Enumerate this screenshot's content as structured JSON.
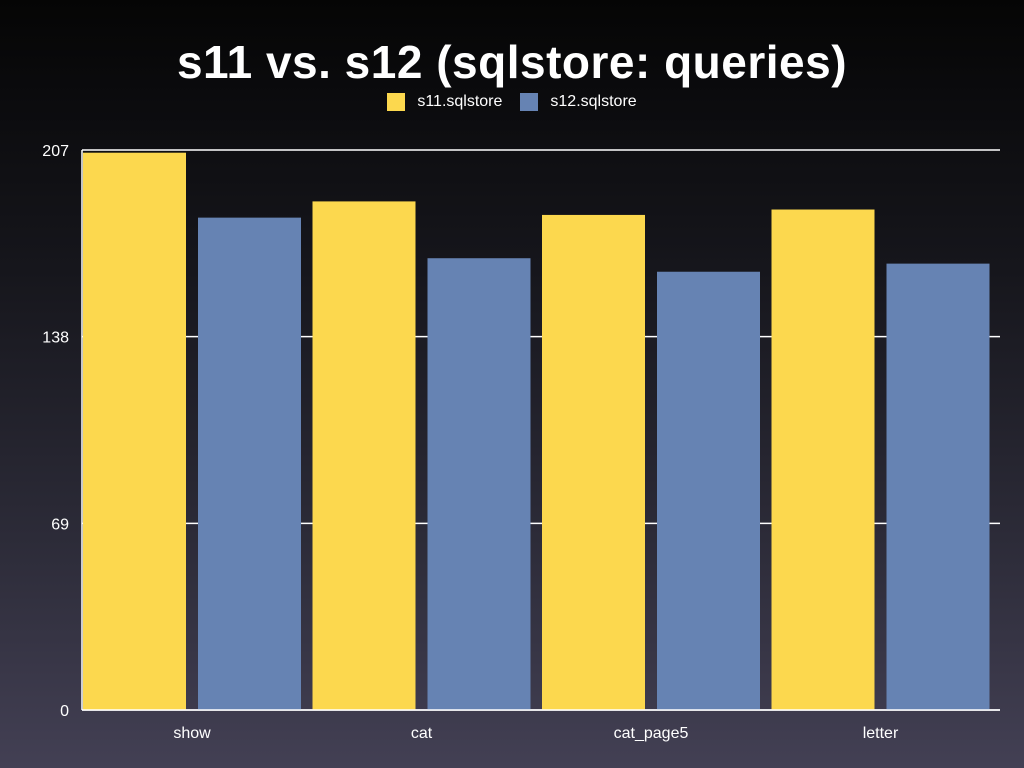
{
  "chart_data": {
    "type": "bar",
    "title": "s11 vs. s12 (sqlstore: queries)",
    "categories": [
      "show",
      "cat",
      "cat_page5",
      "letter"
    ],
    "series": [
      {
        "name": "s11.sqlstore",
        "color": "#fcd84e",
        "values": [
          206,
          188,
          183,
          185
        ]
      },
      {
        "name": "s12.sqlstore",
        "color": "#6683b3",
        "values": [
          182,
          167,
          162,
          165
        ]
      }
    ],
    "yticks": [
      "0",
      "69",
      "138",
      "207"
    ],
    "ylim": [
      0,
      207
    ],
    "grid": true,
    "legend_position": "top"
  }
}
